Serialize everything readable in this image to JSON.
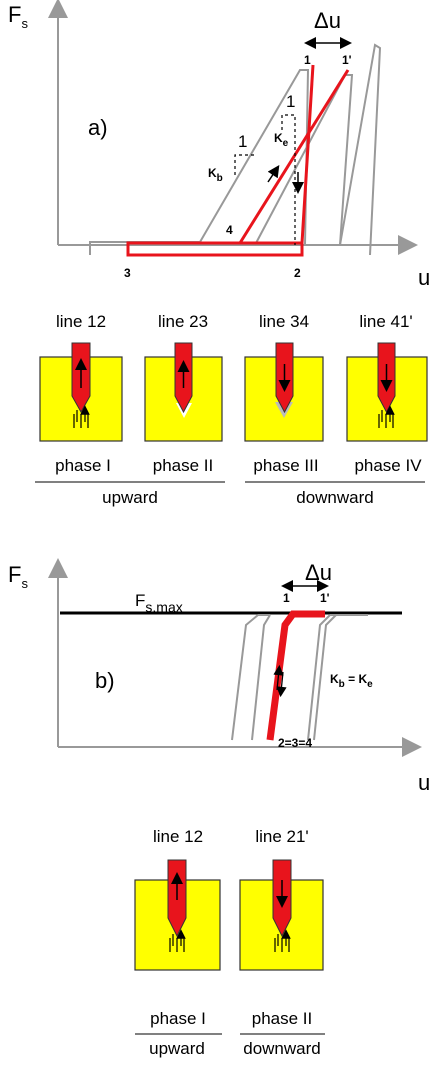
{
  "panel_a": {
    "label": "a)",
    "y_axis": {
      "symbol": "F",
      "subscript": "s"
    },
    "x_axis": "u",
    "delta": "Δu",
    "points": {
      "p1": "1",
      "p1_prime": "1'",
      "p2": "2",
      "p3": "3",
      "p4": "4"
    },
    "slopes": {
      "kb": {
        "symbol": "K",
        "subscript": "b",
        "run": "1"
      },
      "ke": {
        "symbol": "K",
        "subscript": "e",
        "run": "1"
      }
    },
    "blocks": [
      {
        "line": "line 12",
        "phase": "phase I"
      },
      {
        "line": "line 23",
        "phase": "phase II"
      },
      {
        "line": "line 34",
        "phase": "phase III"
      },
      {
        "line": "line 41'",
        "phase": "phase IV"
      }
    ],
    "groups": [
      "upward",
      "downward"
    ]
  },
  "panel_b": {
    "label": "b)",
    "y_axis": {
      "symbol": "F",
      "subscript": "s"
    },
    "x_axis": "u",
    "delta": "Δu",
    "max_label": {
      "symbol": "F",
      "subscript": "s,max"
    },
    "points": {
      "p1": "1",
      "p1_prime": "1'",
      "p234": "2=3=4"
    },
    "stiffness": {
      "kb": "K",
      "kb_sub": "b",
      "eq": " = K",
      "ke_sub": "e"
    },
    "blocks": [
      {
        "line": "line 12",
        "phase": "phase I"
      },
      {
        "line": "line 21'",
        "phase": "phase II"
      }
    ],
    "groups": [
      "upward",
      "downward"
    ]
  }
}
